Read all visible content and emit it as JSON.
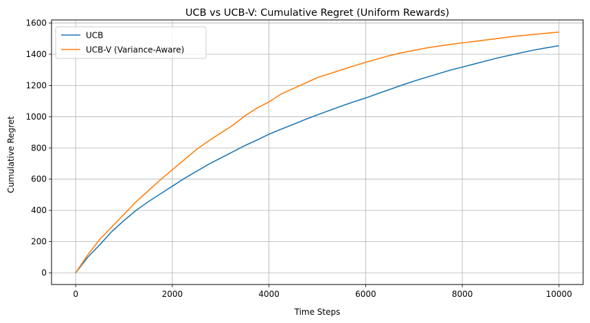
{
  "chart_data": {
    "type": "line",
    "title": "UCB vs UCB-V: Cumulative Regret (Uniform Rewards)",
    "xlabel": "Time Steps",
    "ylabel": "Cumulative Regret",
    "xlim": [
      -500,
      10500
    ],
    "ylim": [
      -75,
      1620
    ],
    "xticks": [
      0,
      2000,
      4000,
      6000,
      8000,
      10000
    ],
    "yticks": [
      0,
      200,
      400,
      600,
      800,
      1000,
      1200,
      1400,
      1600
    ],
    "grid": true,
    "legend_position": "top-left",
    "x": [
      0,
      250,
      500,
      750,
      1000,
      1250,
      1500,
      1750,
      2000,
      2250,
      2500,
      2750,
      3000,
      3250,
      3500,
      3750,
      4000,
      4250,
      4500,
      4750,
      5000,
      5250,
      5500,
      5750,
      6000,
      6250,
      6500,
      6750,
      7000,
      7250,
      7500,
      7750,
      8000,
      8250,
      8500,
      8750,
      9000,
      9250,
      9500,
      9750,
      10000
    ],
    "series": [
      {
        "name": "UCB",
        "color": "#1f77b4",
        "values": [
          0,
          100,
          180,
          265,
          335,
          400,
          455,
          505,
          555,
          605,
          650,
          695,
          735,
          775,
          815,
          850,
          888,
          920,
          950,
          982,
          1012,
          1040,
          1068,
          1095,
          1120,
          1148,
          1175,
          1202,
          1228,
          1252,
          1275,
          1298,
          1318,
          1338,
          1358,
          1378,
          1395,
          1412,
          1428,
          1442,
          1455
        ]
      },
      {
        "name": "UCB-V (Variance-Aware)",
        "color": "#ff7f0e",
        "values": [
          0,
          115,
          215,
          295,
          375,
          455,
          525,
          595,
          660,
          725,
          790,
          845,
          895,
          945,
          1005,
          1055,
          1095,
          1145,
          1180,
          1215,
          1250,
          1275,
          1300,
          1325,
          1348,
          1370,
          1392,
          1410,
          1425,
          1440,
          1452,
          1463,
          1473,
          1482,
          1492,
          1502,
          1512,
          1520,
          1528,
          1535,
          1542
        ]
      }
    ]
  }
}
